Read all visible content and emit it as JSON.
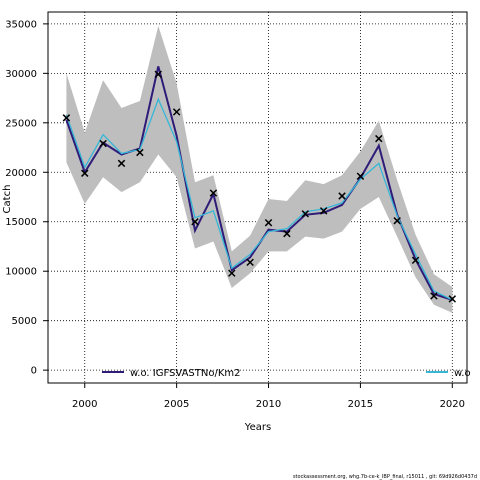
{
  "chart_data": {
    "type": "line",
    "title": "",
    "xlabel": "Years",
    "ylabel": "Catch",
    "xlim": [
      1998,
      2020.8
    ],
    "ylim": [
      -1300,
      36200
    ],
    "xticks": [
      2000,
      2005,
      2010,
      2015,
      2020
    ],
    "yticks": [
      0,
      5000,
      10000,
      15000,
      20000,
      25000,
      30000,
      35000
    ],
    "grid": true,
    "legend_placement": "bottom",
    "x": [
      1999,
      2000,
      2001,
      2002,
      2003,
      2004,
      2005,
      2006,
      2007,
      2008,
      2009,
      2010,
      2011,
      2012,
      2013,
      2014,
      2015,
      2016,
      2017,
      2018,
      2019,
      2020
    ],
    "band": {
      "lower": [
        21000,
        16800,
        19500,
        18000,
        19000,
        21800,
        19500,
        12300,
        13000,
        8300,
        9800,
        12000,
        12000,
        13500,
        13300,
        14000,
        16300,
        17500,
        13500,
        9400,
        6600,
        5800
      ],
      "upper": [
        30000,
        24000,
        29300,
        26500,
        27200,
        34800,
        29000,
        19000,
        19700,
        12000,
        13600,
        17300,
        17100,
        19200,
        18800,
        19700,
        22100,
        25200,
        19200,
        13700,
        9700,
        8400
      ],
      "color": "#bebebe"
    },
    "series": [
      {
        "name": "w.o. IGFSVASTNo/Km2",
        "color": "#2f1b78",
        "values": [
          25300,
          20000,
          23000,
          21800,
          22400,
          30700,
          23700,
          14100,
          17800,
          10100,
          11400,
          14200,
          14000,
          15700,
          15900,
          16700,
          19400,
          22700,
          15700,
          11200,
          7700,
          7100
        ]
      },
      {
        "name": "w.o",
        "color": "#36b7d8",
        "values": [
          25800,
          20500,
          23800,
          21900,
          22300,
          27400,
          23100,
          15400,
          16100,
          10300,
          11700,
          14000,
          14300,
          16000,
          16300,
          16900,
          19300,
          20900,
          15600,
          11700,
          8000,
          7100
        ]
      }
    ],
    "observed": {
      "marker": "x",
      "values": [
        25500,
        19900,
        22900,
        20900,
        22000,
        29900,
        26100,
        15000,
        17900,
        9800,
        10900,
        14900,
        13800,
        15800,
        16100,
        17600,
        19600,
        23400,
        15100,
        11100,
        7500,
        7200
      ]
    }
  },
  "footnote": "stockassessment.org, whg.7b-ce-k_IBP_final, r15011 , git: 69d926d0437d"
}
